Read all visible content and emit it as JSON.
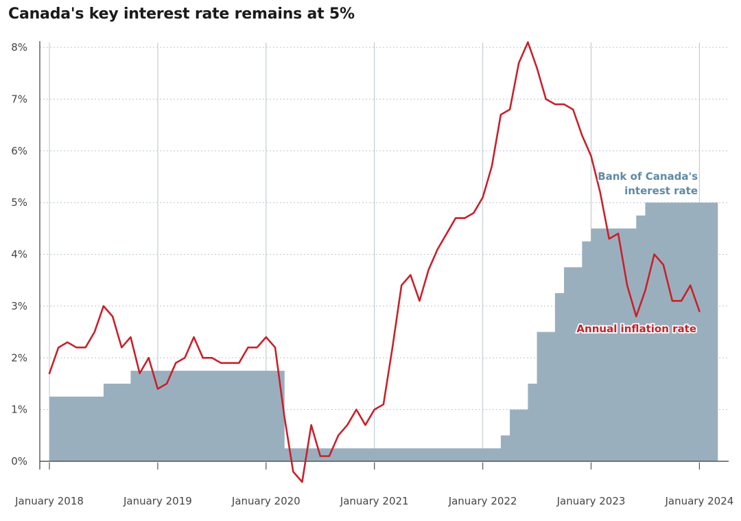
{
  "title": "Canada's key interest rate remains at 5%",
  "colors": {
    "rate_fill": "#9aafbd",
    "inflation_line": "#c8202a",
    "rate_label": "#5f8aa3",
    "grid": "#b8c4cc"
  },
  "chart_data": {
    "type": "area",
    "title": "Canada's key interest rate remains at 5%",
    "xlabel": "",
    "ylabel": "",
    "xlim": [
      "2018-01",
      "2024-03"
    ],
    "ylim": [
      0,
      8
    ],
    "y_ticks": [
      "0%",
      "1%",
      "2%",
      "3%",
      "4%",
      "5%",
      "6%",
      "7%",
      "8%"
    ],
    "x_tick_labels": [
      "January 2018",
      "January 2019",
      "January 2020",
      "January 2021",
      "January 2022",
      "January 2023",
      "January 2024"
    ],
    "grid": true,
    "annotations": [
      {
        "text_lines": [
          "Bank of Canada's",
          "interest  rate"
        ],
        "series": "rate"
      },
      {
        "text_lines": [
          "Annual inflation rate"
        ],
        "series": "inflation"
      }
    ],
    "series": [
      {
        "key": "rate",
        "name": "Bank of Canada's interest  rate",
        "type": "step-area",
        "steps": [
          {
            "from": "2018-01",
            "to": "2018-07",
            "value": 1.25
          },
          {
            "from": "2018-07",
            "to": "2018-10",
            "value": 1.5
          },
          {
            "from": "2018-10",
            "to": "2020-03",
            "value": 1.75
          },
          {
            "from": "2020-03",
            "to": "2022-03",
            "value": 0.25
          },
          {
            "from": "2022-03",
            "to": "2022-04",
            "value": 0.5
          },
          {
            "from": "2022-04",
            "to": "2022-06",
            "value": 1.0
          },
          {
            "from": "2022-06",
            "to": "2022-07",
            "value": 1.5
          },
          {
            "from": "2022-07",
            "to": "2022-09",
            "value": 2.5
          },
          {
            "from": "2022-09",
            "to": "2022-10",
            "value": 3.25
          },
          {
            "from": "2022-10",
            "to": "2022-12",
            "value": 3.75
          },
          {
            "from": "2022-12",
            "to": "2023-01",
            "value": 4.25
          },
          {
            "from": "2023-01",
            "to": "2023-06",
            "value": 4.5
          },
          {
            "from": "2023-06",
            "to": "2023-07",
            "value": 4.75
          },
          {
            "from": "2023-07",
            "to": "2024-03",
            "value": 5.0
          }
        ]
      },
      {
        "key": "inflation",
        "name": "Annual inflation rate",
        "type": "line",
        "x": [
          "2018-01",
          "2018-02",
          "2018-03",
          "2018-04",
          "2018-05",
          "2018-06",
          "2018-07",
          "2018-08",
          "2018-09",
          "2018-10",
          "2018-11",
          "2018-12",
          "2019-01",
          "2019-02",
          "2019-03",
          "2019-04",
          "2019-05",
          "2019-06",
          "2019-07",
          "2019-08",
          "2019-09",
          "2019-10",
          "2019-11",
          "2019-12",
          "2020-01",
          "2020-02",
          "2020-03",
          "2020-04",
          "2020-05",
          "2020-06",
          "2020-07",
          "2020-08",
          "2020-09",
          "2020-10",
          "2020-11",
          "2020-12",
          "2021-01",
          "2021-02",
          "2021-03",
          "2021-04",
          "2021-05",
          "2021-06",
          "2021-07",
          "2021-08",
          "2021-09",
          "2021-10",
          "2021-11",
          "2021-12",
          "2022-01",
          "2022-02",
          "2022-03",
          "2022-04",
          "2022-05",
          "2022-06",
          "2022-07",
          "2022-08",
          "2022-09",
          "2022-10",
          "2022-11",
          "2022-12",
          "2023-01",
          "2023-02",
          "2023-03",
          "2023-04",
          "2023-05",
          "2023-06",
          "2023-07",
          "2023-08",
          "2023-09",
          "2023-10",
          "2023-11",
          "2023-12"
        ],
        "values": [
          1.7,
          2.2,
          2.3,
          2.2,
          2.2,
          2.5,
          3.0,
          2.8,
          2.2,
          2.4,
          1.7,
          2.0,
          1.4,
          1.5,
          1.9,
          2.0,
          2.4,
          2.0,
          2.0,
          1.9,
          1.9,
          1.9,
          2.2,
          2.2,
          2.4,
          2.2,
          0.9,
          -0.2,
          -0.4,
          0.7,
          0.1,
          0.1,
          0.5,
          0.7,
          1.0,
          0.7,
          1.0,
          1.1,
          2.2,
          3.4,
          3.6,
          3.1,
          3.7,
          4.1,
          4.4,
          4.7,
          4.7,
          4.8,
          5.1,
          5.7,
          6.7,
          6.8,
          7.7,
          8.1,
          7.6,
          7.0,
          6.9,
          6.9,
          6.8,
          6.3,
          5.9,
          5.2,
          4.3,
          4.4,
          3.4,
          2.8,
          3.3,
          4.0,
          3.8,
          3.1,
          3.1,
          3.4
        ]
      }
    ],
    "last_point": {
      "x": "2024-01",
      "value": 2.9
    }
  }
}
